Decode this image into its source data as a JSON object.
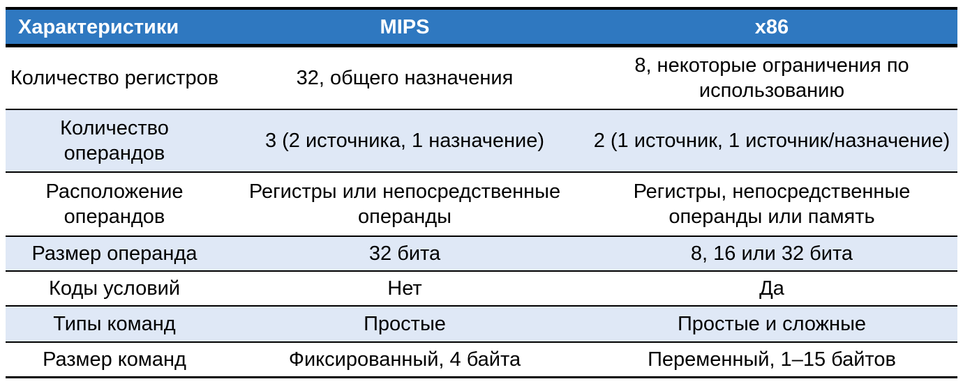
{
  "header": [
    "Характеристики",
    "MIPS",
    "x86"
  ],
  "rows": [
    [
      "Количество регистров",
      "32, общего назначения",
      "8, некоторые ограничения по использованию"
    ],
    [
      "Количество операндов",
      "3 (2 источника, 1 назначение)",
      "2 (1 источник, 1 источник/назначение)"
    ],
    [
      "Расположение операндов",
      "Регистры или непосредственные операнды",
      "Регистры, непосредственные операнды или память"
    ],
    [
      "Размер операнда",
      "32 бита",
      "8, 16 или 32 бита"
    ],
    [
      "Коды условий",
      "Нет",
      "Да"
    ],
    [
      "Типы команд",
      "Простые",
      "Простые и сложные"
    ],
    [
      "Размер команд",
      "Фиксированный, 4 байта",
      "Переменный, 1–15 байтов"
    ]
  ],
  "colors": {
    "header_bg": "#2F78C0",
    "alt_row_bg": "#DFE8F6",
    "border": "#000000"
  }
}
